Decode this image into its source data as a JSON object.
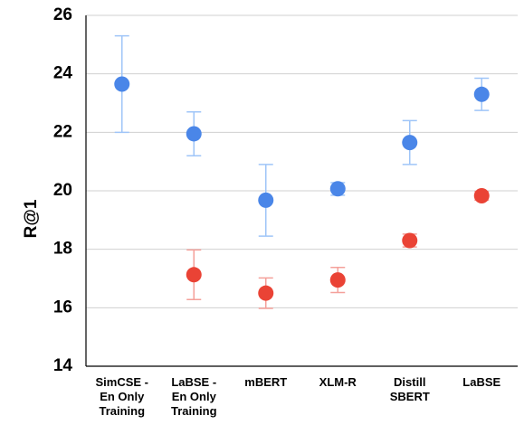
{
  "chart_data": {
    "type": "scatter",
    "title": "",
    "xlabel": "",
    "ylabel": "R@1",
    "ylim": [
      14,
      26
    ],
    "yticks": [
      14,
      16,
      18,
      20,
      22,
      24,
      26
    ],
    "grid": true,
    "legend": "none",
    "categories": [
      [
        "SimCSE -",
        "En Only",
        "Training"
      ],
      [
        "LaBSE -",
        "En Only",
        "Training"
      ],
      [
        "mBERT"
      ],
      [
        "XLM-R"
      ],
      [
        "Distill",
        "SBERT"
      ],
      [
        "LaBSE"
      ]
    ],
    "series": [
      {
        "color": "#4a86e8",
        "errorbar_color": "#9fc5f8",
        "values": [
          23.65,
          21.95,
          19.68,
          20.07,
          21.65,
          23.3
        ],
        "err_low": [
          22.0,
          21.2,
          18.45,
          19.85,
          20.9,
          22.75
        ],
        "err_high": [
          25.3,
          22.7,
          20.9,
          20.28,
          22.4,
          23.85
        ]
      },
      {
        "color": "#ea4335",
        "errorbar_color": "#f4a09a",
        "values": [
          null,
          17.13,
          16.5,
          16.95,
          18.3,
          19.83
        ],
        "err_low": [
          null,
          16.28,
          15.98,
          16.52,
          18.08,
          19.68
        ],
        "err_high": [
          null,
          17.98,
          17.02,
          17.38,
          18.52,
          19.98
        ]
      }
    ]
  }
}
